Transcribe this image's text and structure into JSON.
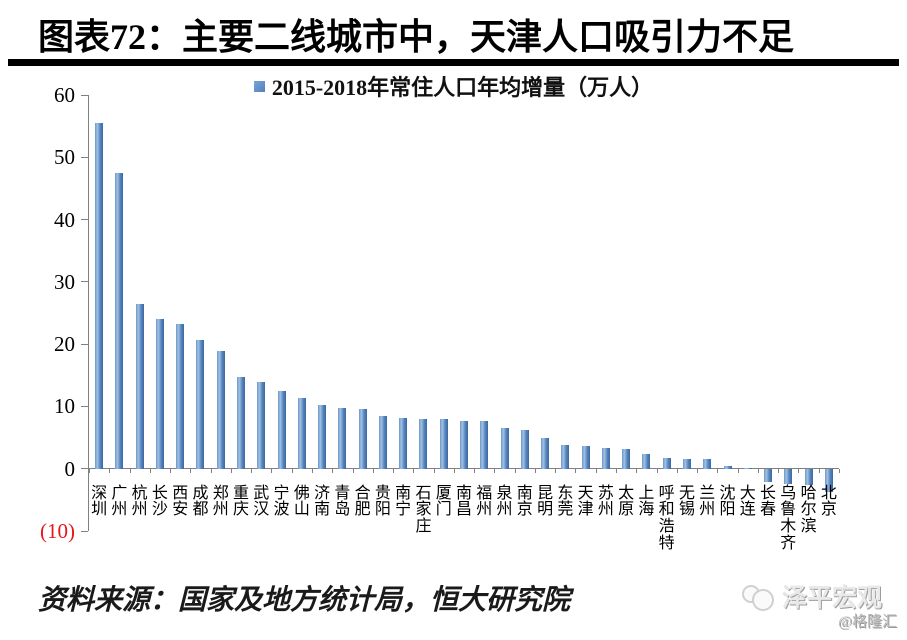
{
  "page": {
    "title": "图表72：主要二线城市中，天津人口吸引力不足",
    "source_note": "资料来源：国家及地方统计局，恒大研究院",
    "watermark_brand": "泽平宏观",
    "watermark_site": "@格隆汇"
  },
  "chart_data": {
    "type": "bar",
    "title": "图表72：主要二线城市中，天津人口吸引力不足",
    "legend": "2015-2018年常住人口年均增量（万人）",
    "legend_position": "top-center",
    "grid": false,
    "unit": "万人",
    "categories": [
      "深圳",
      "广州",
      "杭州",
      "长沙",
      "西安",
      "成都",
      "郑州",
      "重庆",
      "武汉",
      "宁波",
      "佛山",
      "济南",
      "青岛",
      "合肥",
      "贵阳",
      "南宁",
      "石家庄",
      "厦门",
      "南昌",
      "福州",
      "泉州",
      "南京",
      "昆明",
      "东莞",
      "天津",
      "苏州",
      "太原",
      "上海",
      "呼和浩特",
      "无锡",
      "兰州",
      "沈阳",
      "大连",
      "长春",
      "乌鲁木齐",
      "哈尔滨",
      "北京"
    ],
    "values": [
      55.5,
      47.4,
      26.4,
      24.1,
      23.2,
      20.6,
      18.9,
      14.8,
      14.0,
      12.4,
      11.3,
      10.3,
      9.7,
      9.6,
      8.4,
      8.1,
      8.0,
      8.0,
      7.7,
      7.6,
      6.5,
      6.2,
      4.9,
      3.8,
      3.6,
      3.3,
      3.2,
      2.4,
      1.8,
      1.6,
      1.5,
      0.4,
      0.1,
      -2.2,
      -2.4,
      -2.6,
      -3.7
    ],
    "xlabel": "",
    "ylabel": "",
    "ylim": [
      -10,
      60
    ],
    "yticks": [
      60,
      50,
      40,
      30,
      20,
      10,
      0,
      -10
    ],
    "ytick_labels": [
      "60",
      "50",
      "40",
      "30",
      "20",
      "10",
      "0",
      "(10)"
    ],
    "colors": {
      "bar": "#4f81bd",
      "negative_tick_label": "#e8151c",
      "axis": "#808080"
    }
  }
}
